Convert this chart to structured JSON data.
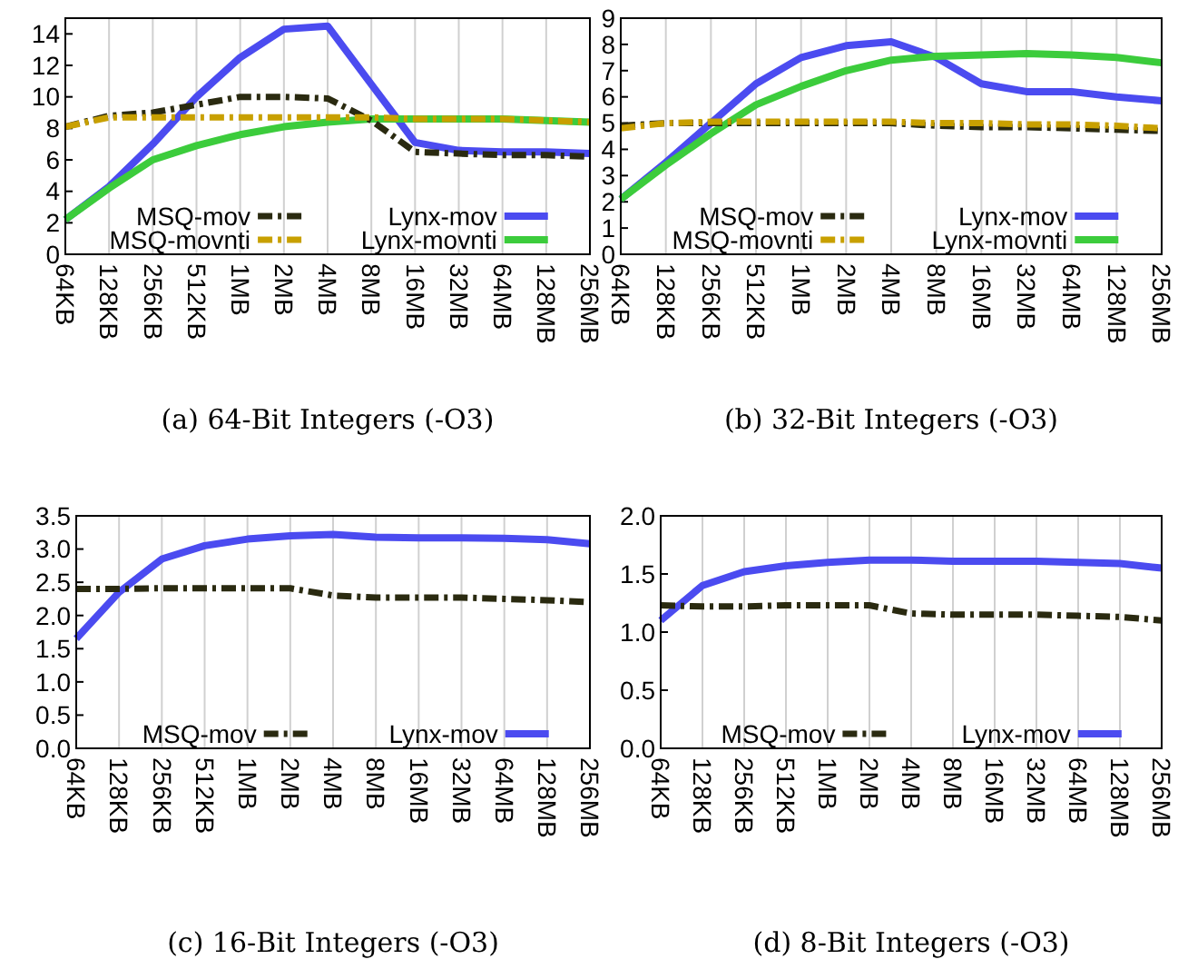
{
  "chart_data": [
    {
      "type": "line",
      "title": "(a) 64-Bit Integers (-O3)",
      "categories": [
        "64KB",
        "128KB",
        "256KB",
        "512KB",
        "1MB",
        "2MB",
        "4MB",
        "8MB",
        "16MB",
        "32MB",
        "64MB",
        "128MB",
        "256MB"
      ],
      "ylim": [
        0,
        15
      ],
      "yticks": [
        0,
        2,
        4,
        6,
        8,
        10,
        12,
        14
      ],
      "grid": "x",
      "legend": "bottom",
      "series": [
        {
          "name": "MSQ-mov",
          "color": "#2a2a10",
          "line_style": "dashed",
          "values": [
            8.1,
            8.8,
            9,
            9.5,
            10,
            10,
            9.9,
            8.5,
            6.5,
            6.4,
            6.3,
            6.3,
            6.2
          ]
        },
        {
          "name": "Lynx-mov",
          "color": "#4b4bf0",
          "line_style": "solid",
          "values": [
            2.2,
            4.3,
            7,
            10,
            12.5,
            14.3,
            14.5,
            10.8,
            7.1,
            6.6,
            6.5,
            6.5,
            6.4
          ]
        },
        {
          "name": "MSQ-movnti",
          "color": "#c8a000",
          "line_style": "dashed",
          "values": [
            8.1,
            8.7,
            8.7,
            8.7,
            8.7,
            8.7,
            8.7,
            8.7,
            8.6,
            8.6,
            8.6,
            8.5,
            8.4
          ]
        },
        {
          "name": "Lynx-movnti",
          "color": "#3ccc3c",
          "line_style": "solid",
          "values": [
            2.2,
            4.2,
            6,
            6.9,
            7.6,
            8.1,
            8.4,
            8.6,
            8.6,
            8.6,
            8.6,
            8.5,
            8.4
          ]
        }
      ]
    },
    {
      "type": "line",
      "title": "(b) 32-Bit Integers (-O3)",
      "categories": [
        "64KB",
        "128KB",
        "256KB",
        "512KB",
        "1MB",
        "2MB",
        "4MB",
        "8MB",
        "16MB",
        "32MB",
        "64MB",
        "128MB",
        "256MB"
      ],
      "ylim": [
        0,
        9
      ],
      "yticks": [
        0,
        1,
        2,
        3,
        4,
        5,
        6,
        7,
        8,
        9
      ],
      "grid": "x",
      "legend": "bottom",
      "series": [
        {
          "name": "MSQ-mov",
          "color": "#2a2a10",
          "line_style": "dashed",
          "values": [
            4.9,
            5,
            5,
            5,
            5,
            5,
            5,
            4.9,
            4.85,
            4.85,
            4.8,
            4.75,
            4.7
          ]
        },
        {
          "name": "Lynx-mov",
          "color": "#4b4bf0",
          "line_style": "solid",
          "values": [
            2.1,
            3.5,
            5,
            6.5,
            7.5,
            7.95,
            8.1,
            7.5,
            6.5,
            6.2,
            6.2,
            6,
            5.85
          ]
        },
        {
          "name": "MSQ-movnti",
          "color": "#c8a000",
          "line_style": "dashed",
          "values": [
            4.8,
            5,
            5.05,
            5.05,
            5.05,
            5.05,
            5.05,
            5,
            5,
            4.95,
            4.95,
            4.9,
            4.8
          ]
        },
        {
          "name": "Lynx-movnti",
          "color": "#3ccc3c",
          "line_style": "solid",
          "values": [
            2.1,
            3.4,
            4.6,
            5.7,
            6.4,
            7,
            7.4,
            7.55,
            7.6,
            7.65,
            7.6,
            7.5,
            7.3
          ]
        }
      ]
    },
    {
      "type": "line",
      "title": "(c) 16-Bit Integers (-O3)",
      "categories": [
        "64KB",
        "128KB",
        "256KB",
        "512KB",
        "1MB",
        "2MB",
        "4MB",
        "8MB",
        "16MB",
        "32MB",
        "64MB",
        "128MB",
        "256MB"
      ],
      "ylim": [
        0,
        3.5
      ],
      "yticks": [
        {
          "value": 0,
          "label": "0.0"
        },
        {
          "value": 0.5,
          "label": "0.5"
        },
        {
          "value": 1,
          "label": "1.0"
        },
        {
          "value": 1.5,
          "label": "1.5"
        },
        {
          "value": 2,
          "label": "2.0"
        },
        {
          "value": 2.5,
          "label": "2.5"
        },
        {
          "value": 3,
          "label": "3.0"
        },
        {
          "value": 3.5,
          "label": "3.5"
        }
      ],
      "grid": "x",
      "legend": "bottom",
      "series": [
        {
          "name": "MSQ-mov",
          "color": "#2a2a10",
          "line_style": "dashed",
          "values": [
            2.4,
            2.4,
            2.41,
            2.41,
            2.41,
            2.41,
            2.3,
            2.27,
            2.27,
            2.27,
            2.25,
            2.23,
            2.2
          ]
        },
        {
          "name": "Lynx-mov",
          "color": "#4b4bf0",
          "line_style": "solid",
          "values": [
            1.65,
            2.35,
            2.85,
            3.05,
            3.15,
            3.2,
            3.22,
            3.18,
            3.17,
            3.17,
            3.16,
            3.14,
            3.08
          ]
        }
      ]
    },
    {
      "type": "line",
      "title": "(d) 8-Bit Integers (-O3)",
      "categories": [
        "64KB",
        "128KB",
        "256KB",
        "512KB",
        "1MB",
        "2MB",
        "4MB",
        "8MB",
        "16MB",
        "32MB",
        "64MB",
        "128MB",
        "256MB"
      ],
      "ylim": [
        0,
        2
      ],
      "yticks": [
        {
          "value": 0,
          "label": "0.0"
        },
        {
          "value": 0.5,
          "label": "0.5"
        },
        {
          "value": 1,
          "label": "1.0"
        },
        {
          "value": 1.5,
          "label": "1.5"
        },
        {
          "value": 2,
          "label": "2.0"
        }
      ],
      "grid": "x",
      "legend": "bottom",
      "series": [
        {
          "name": "MSQ-mov",
          "color": "#2a2a10",
          "line_style": "dashed",
          "values": [
            1.23,
            1.22,
            1.22,
            1.23,
            1.23,
            1.23,
            1.16,
            1.15,
            1.15,
            1.15,
            1.14,
            1.13,
            1.1
          ]
        },
        {
          "name": "Lynx-mov",
          "color": "#4b4bf0",
          "line_style": "solid",
          "values": [
            1.1,
            1.4,
            1.52,
            1.57,
            1.6,
            1.62,
            1.62,
            1.61,
            1.61,
            1.61,
            1.6,
            1.59,
            1.55
          ]
        }
      ]
    }
  ]
}
